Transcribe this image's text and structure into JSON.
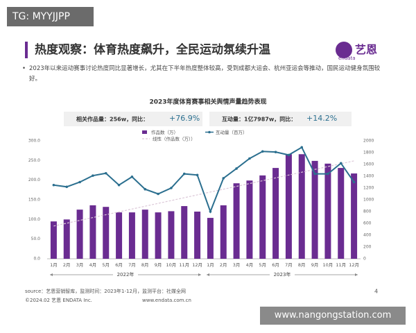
{
  "watermark_top": "TG: MYYJJPP",
  "header": {
    "title": "热度观察：体育热度飙升，全民运动氛续升温",
    "logo": "艺恩",
    "logo_sub": "endata"
  },
  "bullet": "2023年以来运动赛事讨论热度同比显著增长，尤其在下半年热度整体较高，受到成都大运会、杭州亚运会等推动，国民运动健身氛围较好。",
  "stats": [
    {
      "label": "相关作品量：256w，同比：",
      "change": "+76.9%"
    },
    {
      "label": "互动量：1亿7987w，同比：",
      "change": "+14.2%"
    }
  ],
  "footer": {
    "source": "source：艺恩营销智库，监测时间：2023年1-12月，监测平台：社媒全网",
    "copyright": "©2024.02 艺恩 ENDATA Inc.",
    "website": "www.endata.com.cn",
    "page": "4"
  },
  "watermark_bottom": "www.nangongstation.com",
  "chart_data": {
    "type": "bar_line",
    "title": "2023年度体育赛事相关舆情声量趋势表现",
    "categories": [
      "1月",
      "2月",
      "3月",
      "4月",
      "5月",
      "6月",
      "7月",
      "8月",
      "9月",
      "10月",
      "11月",
      "12月",
      "1月",
      "2月",
      "3月",
      "4月",
      "5月",
      "6月",
      "7月",
      "8月",
      "9月",
      "10月",
      "11月",
      "12月"
    ],
    "x_groups": [
      "2022年",
      "2023年"
    ],
    "series": [
      {
        "name": "作品数（万）",
        "type": "bar",
        "color": "#6a2c91",
        "values": [
          95,
          100,
          125,
          136,
          132,
          118,
          118,
          125,
          118,
          121,
          134,
          120,
          104,
          136,
          192,
          199,
          212,
          231,
          266,
          266,
          249,
          242,
          231,
          217
        ]
      },
      {
        "name": "互动量（百万）",
        "type": "line",
        "axis": "y2",
        "color": "#2b6f8f",
        "values": [
          1250,
          1220,
          1300,
          1410,
          1450,
          1250,
          1390,
          1180,
          1100,
          1200,
          1440,
          1420,
          800,
          1365,
          1530,
          1700,
          1820,
          1810,
          1760,
          1890,
          1440,
          1440,
          1620,
          1300
        ]
      }
    ],
    "trendline": {
      "name": "线性（作品数（万））",
      "color": "#dcc8d8"
    },
    "ylim": [
      0,
      300
    ],
    "yticks": [
      {
        "value": 0,
        "label": "0.0"
      },
      {
        "value": 50,
        "label": "50.0"
      },
      {
        "value": 100,
        "label": "100.0"
      },
      {
        "value": 150,
        "label": "150.0"
      },
      {
        "value": 200,
        "label": "200.0"
      },
      {
        "value": 250,
        "label": "250.0"
      },
      {
        "value": 300,
        "label": "300.0"
      }
    ],
    "y2lim": [
      0,
      2000
    ],
    "y2ticks": [
      0,
      200,
      400,
      600,
      800,
      1000,
      1200,
      1400,
      1600,
      1800,
      2000
    ],
    "grid": false
  }
}
